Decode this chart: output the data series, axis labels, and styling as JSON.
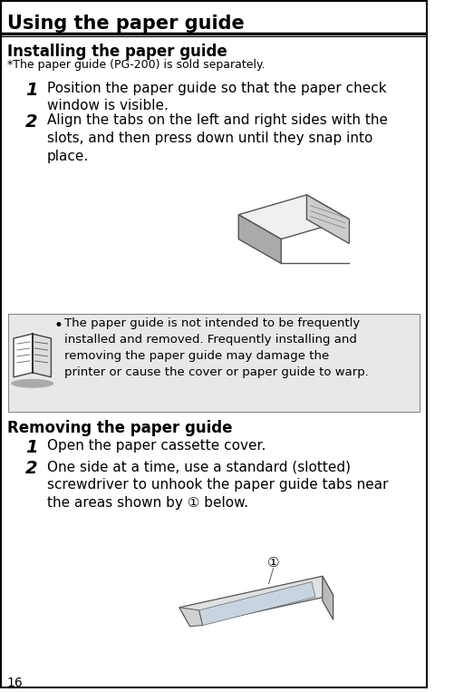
{
  "title": "Using the paper guide",
  "bg_color": "#ffffff",
  "border_color": "#000000",
  "section1_header": "Installing the paper guide",
  "section1_footnote": "*The paper guide (PG-200) is sold separately.",
  "step1_num": "1",
  "step1_text": "Position the paper guide so that the paper check\nwindow is visible.",
  "step2_num": "2",
  "step2_text": "Align the tabs on the left and right sides with the\nslots, and then press down until they snap into\nplace.",
  "note_bullet": "•",
  "note_text": "The paper guide is not intended to be frequently\ninstalled and removed. Frequently installing and\nremoving the paper guide may damage the\nprinter or cause the cover or paper guide to warp.",
  "section2_header": "Removing the paper guide",
  "step3_num": "1",
  "step3_text": "Open the paper cassette cover.",
  "step4_num": "2",
  "step4_text": "One side at a time, use a standard (slotted)\nscrewdriver to unhook the paper guide tabs near\nthe areas shown by ① below.",
  "page_num": "16",
  "note_bg": "#e8e8e8",
  "title_fontsize": 15,
  "header_fontsize": 12,
  "footnote_fontsize": 9,
  "step_num_fontsize": 14,
  "step_text_fontsize": 11,
  "note_fontsize": 9.5,
  "page_num_fontsize": 10
}
